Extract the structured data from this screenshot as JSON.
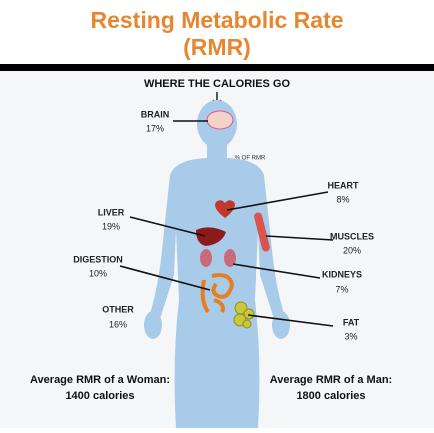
{
  "header": {
    "title": "Resting Metabolic Rate",
    "subtitle": "(RMR)"
  },
  "diagram": {
    "heading": "WHERE THE CALORIES GO",
    "unit_note": "% OF RMR",
    "organs": [
      {
        "label": "BRAIN",
        "share": "17%"
      },
      {
        "label": "HEART",
        "share": "8%"
      },
      {
        "label": "LIVER",
        "share": "19%"
      },
      {
        "label": "MUSCLES",
        "share": "20%"
      },
      {
        "label": "DIGESTION",
        "share": "10%"
      },
      {
        "label": "KIDNEYS",
        "share": "7%"
      },
      {
        "label": "OTHER",
        "share": "16%"
      },
      {
        "label": "FAT",
        "share": "3%"
      }
    ]
  },
  "footer": {
    "woman": {
      "label": "Average RMR of a Woman:",
      "value": "1400 calories"
    },
    "man": {
      "label": "Average RMR of a Man:",
      "value": "1800 calories"
    }
  }
}
